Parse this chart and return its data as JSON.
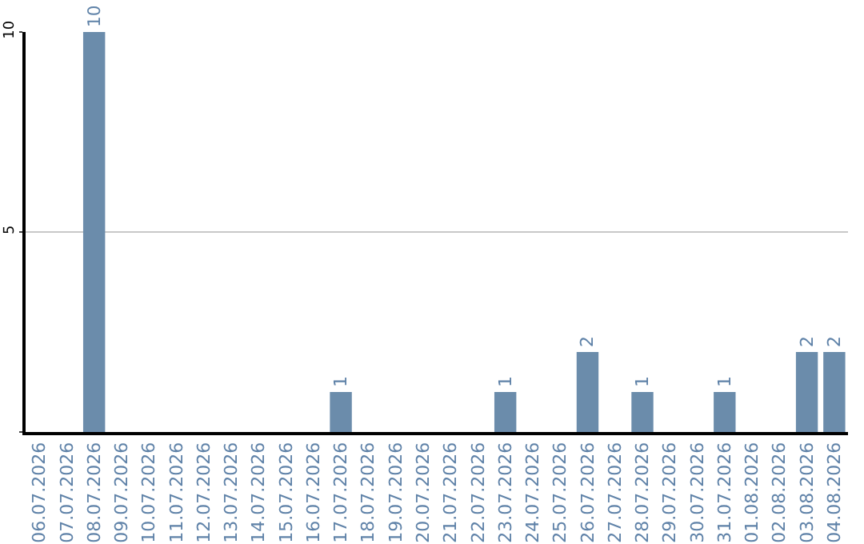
{
  "chart_data": {
    "type": "bar",
    "categories": [
      "06.07.2026",
      "07.07.2026",
      "08.07.2026",
      "09.07.2026",
      "10.07.2026",
      "11.07.2026",
      "12.07.2026",
      "13.07.2026",
      "14.07.2026",
      "15.07.2026",
      "16.07.2026",
      "17.07.2026",
      "18.07.2026",
      "19.07.2026",
      "20.07.2026",
      "21.07.2026",
      "22.07.2026",
      "23.07.2026",
      "24.07.2026",
      "25.07.2026",
      "26.07.2026",
      "27.07.2026",
      "28.07.2026",
      "29.07.2026",
      "30.07.2026",
      "31.07.2026",
      "01.08.2026",
      "02.08.2026",
      "03.08.2026",
      "04.08.2026"
    ],
    "values": [
      0,
      0,
      10,
      0,
      0,
      0,
      0,
      0,
      0,
      0,
      0,
      1,
      0,
      0,
      0,
      0,
      0,
      1,
      0,
      0,
      2,
      0,
      1,
      0,
      0,
      1,
      0,
      0,
      2,
      2
    ],
    "value_labels": [
      null,
      null,
      "10",
      null,
      null,
      null,
      null,
      null,
      null,
      null,
      null,
      "1",
      null,
      null,
      null,
      null,
      null,
      "1",
      null,
      null,
      "2",
      null,
      "1",
      null,
      null,
      "1",
      null,
      null,
      "2",
      "2"
    ],
    "color": "#6b8cab",
    "ylim": [
      0,
      10
    ],
    "yticks": [
      {
        "value": 0,
        "label": null
      },
      5,
      10
    ],
    "grid": "y",
    "legend": false
  }
}
